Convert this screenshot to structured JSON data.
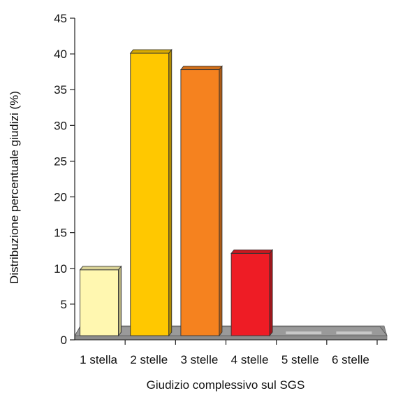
{
  "chart_data": {
    "type": "bar",
    "title": "",
    "xlabel": "Giudizio complessivo sul SGS",
    "ylabel": "Distribuzione percentuale giudizi (%)",
    "categories": [
      "1 stella",
      "2 stelle",
      "3 stelle",
      "4 stelle",
      "5 stelle",
      "6 stelle"
    ],
    "values": [
      9.8,
      40.1,
      37.8,
      12.1,
      0,
      0
    ],
    "ylim": [
      0,
      45
    ],
    "yticks": [
      "0",
      "5",
      "10",
      "15",
      "20",
      "25",
      "30",
      "35",
      "40",
      "45"
    ],
    "grid": false,
    "legend": "none",
    "style": "3d",
    "colors": [
      "#fff7b0",
      "#ffc800",
      "#f5821f",
      "#ee1c25",
      "#c8c8c8",
      "#c8c8c8"
    ],
    "floor_color": "#8c8c8c"
  }
}
